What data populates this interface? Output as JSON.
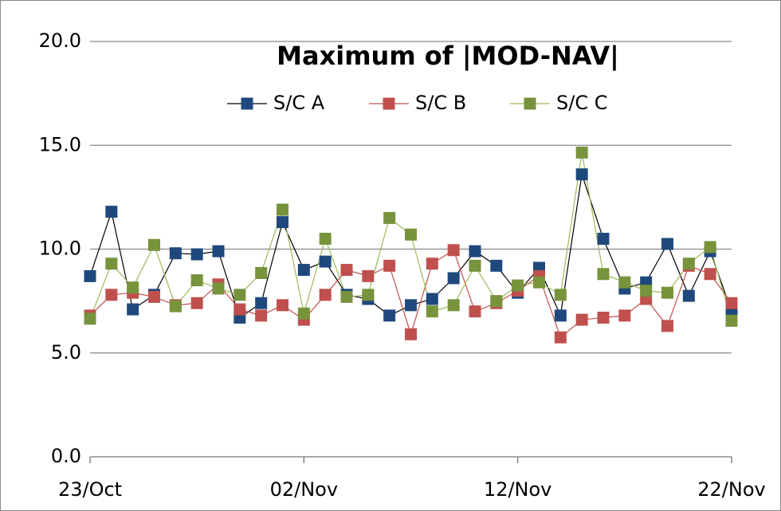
{
  "chart_data": {
    "type": "line",
    "title": "Maximum of |MOD-NAV|",
    "categories": [
      "23/Oct",
      null,
      null,
      null,
      null,
      null,
      null,
      null,
      null,
      null,
      "02/Nov",
      null,
      null,
      null,
      null,
      null,
      null,
      null,
      null,
      null,
      "12/Nov",
      null,
      null,
      null,
      null,
      null,
      null,
      null,
      null,
      null,
      "22/Nov"
    ],
    "series": [
      {
        "name": "S/C A",
        "color": "#1f497d",
        "line_color": "#000000",
        "values": [
          8.7,
          11.8,
          7.1,
          7.8,
          9.8,
          9.75,
          9.9,
          6.7,
          7.4,
          11.3,
          9.0,
          9.4,
          7.8,
          7.6,
          6.8,
          7.3,
          7.6,
          8.6,
          9.9,
          9.2,
          7.9,
          9.1,
          6.8,
          13.6,
          10.5,
          8.1,
          8.4,
          10.25,
          7.75,
          9.9,
          7.0
        ]
      },
      {
        "name": "S/C B",
        "color": "#c0504d",
        "line_color": "#c0504d",
        "values": [
          6.8,
          7.8,
          7.9,
          7.7,
          7.3,
          7.4,
          8.3,
          7.1,
          6.8,
          7.3,
          6.6,
          7.8,
          9.0,
          8.7,
          9.2,
          5.9,
          9.3,
          9.95,
          7.0,
          7.4,
          8.0,
          8.7,
          5.75,
          6.6,
          6.7,
          6.8,
          7.6,
          6.3,
          9.2,
          8.8,
          7.4
        ]
      },
      {
        "name": "S/C C",
        "color": "#77933c",
        "line_color": "#9bbb59",
        "values": [
          6.65,
          9.3,
          8.15,
          10.2,
          7.25,
          8.5,
          8.1,
          7.8,
          8.85,
          11.9,
          6.9,
          10.5,
          7.7,
          7.8,
          11.5,
          10.7,
          7.0,
          7.3,
          9.2,
          7.5,
          8.25,
          8.4,
          7.8,
          14.65,
          8.8,
          8.4,
          8.0,
          7.9,
          9.3,
          10.1,
          6.55
        ]
      }
    ],
    "ylim": [
      0,
      20
    ],
    "yticks": [
      {
        "value": 0,
        "label": "0.0"
      },
      {
        "value": 5,
        "label": "5.0"
      },
      {
        "value": 10,
        "label": "10.0"
      },
      {
        "value": 15,
        "label": "15.0"
      },
      {
        "value": 20,
        "label": "20.0"
      }
    ],
    "grid": true,
    "legend": "top"
  }
}
